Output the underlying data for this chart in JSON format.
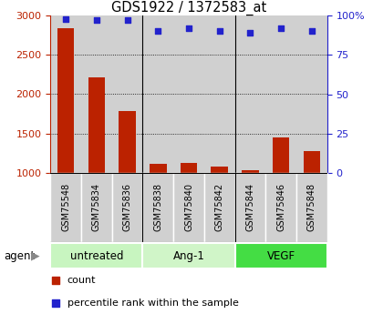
{
  "title": "GDS1922 / 1372583_at",
  "samples": [
    "GSM75548",
    "GSM75834",
    "GSM75836",
    "GSM75838",
    "GSM75840",
    "GSM75842",
    "GSM75844",
    "GSM75846",
    "GSM75848"
  ],
  "counts": [
    2840,
    2220,
    1780,
    1115,
    1130,
    1075,
    1030,
    1450,
    1280
  ],
  "percentiles": [
    98,
    97,
    97,
    90,
    92,
    90,
    89,
    92,
    90
  ],
  "groups": [
    {
      "label": "untreated",
      "start": 0,
      "end": 3,
      "color": "#c8f5c0"
    },
    {
      "label": "Ang-1",
      "start": 3,
      "end": 6,
      "color": "#d0f5c8"
    },
    {
      "label": "VEGF",
      "start": 6,
      "end": 9,
      "color": "#44dd44"
    }
  ],
  "bar_color": "#bb2200",
  "dot_color": "#2222cc",
  "cell_bg": "#d0d0d0",
  "ylim_left": [
    1000,
    3000
  ],
  "ylim_right": [
    0,
    100
  ],
  "yticks_left": [
    1000,
    1500,
    2000,
    2500,
    3000
  ],
  "yticks_right": [
    0,
    25,
    50,
    75,
    100
  ],
  "ytick_labels_right": [
    "0",
    "25",
    "50",
    "75",
    "100%"
  ],
  "grid_values": [
    1500,
    2000,
    2500
  ],
  "agent_label": "agent",
  "legend_count": "count",
  "legend_percentile": "percentile rank within the sample",
  "bar_width": 0.55
}
